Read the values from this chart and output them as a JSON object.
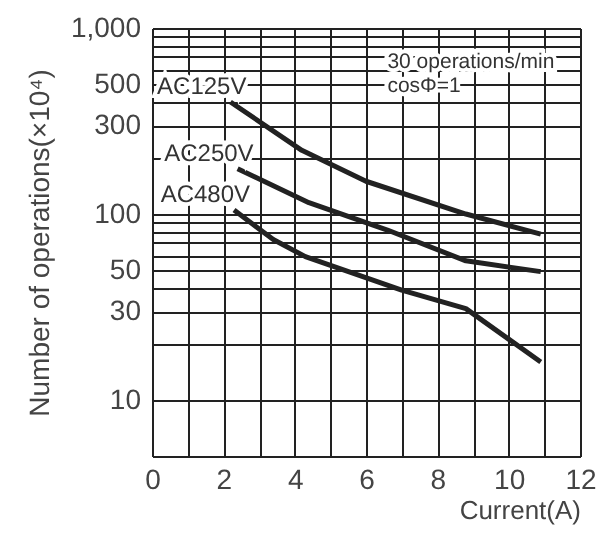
{
  "chart_data": {
    "type": "line",
    "xlabel": "Current(A)",
    "ylabel": "Number of operations(×10⁴)",
    "log": "y",
    "grid": true,
    "xlim": [
      0,
      12
    ],
    "xticks": [
      0,
      {
        "value": 1,
        "label": null
      },
      2,
      {
        "value": 3,
        "label": null
      },
      4,
      {
        "value": 5,
        "label": null
      },
      6,
      {
        "value": 7,
        "label": null
      },
      8,
      {
        "value": 9,
        "label": null
      },
      10,
      {
        "value": 11,
        "label": null
      },
      12
    ],
    "ylim": [
      5,
      1000
    ],
    "yticks": [
      10,
      {
        "value": 20,
        "label": null
      },
      30,
      {
        "value": 40,
        "label": null
      },
      50,
      {
        "value": 60,
        "label": null
      },
      {
        "value": 70,
        "label": null
      },
      {
        "value": 80,
        "label": null
      },
      {
        "value": 90,
        "label": null
      },
      100,
      {
        "value": 200,
        "label": null
      },
      300,
      {
        "value": 400,
        "label": null
      },
      500,
      {
        "value": 600,
        "label": null
      },
      {
        "value": 700,
        "label": null
      },
      {
        "value": 800,
        "label": null
      },
      {
        "value": 900,
        "label": null
      },
      {
        "value": 1000,
        "label": "1,000"
      }
    ],
    "annotations": [
      "30 operations/min",
      "cosΦ=1"
    ],
    "series": [
      {
        "name": "AC125V",
        "color": "#222222",
        "x": [
          2.2,
          4.2,
          6,
          8.8,
          10.9
        ],
        "values": [
          400,
          220,
          150,
          100,
          78
        ]
      },
      {
        "name": "AC250V",
        "color": "#222222",
        "x": [
          2.4,
          4.4,
          6.6,
          8.8,
          10.9
        ],
        "values": [
          175,
          115,
          82,
          56,
          49
        ]
      },
      {
        "name": "AC480V",
        "color": "#222222",
        "x": [
          2.3,
          3.4,
          4.3,
          7,
          8.8,
          10.9
        ],
        "values": [
          105,
          73,
          59,
          39,
          31,
          16
        ]
      }
    ]
  }
}
